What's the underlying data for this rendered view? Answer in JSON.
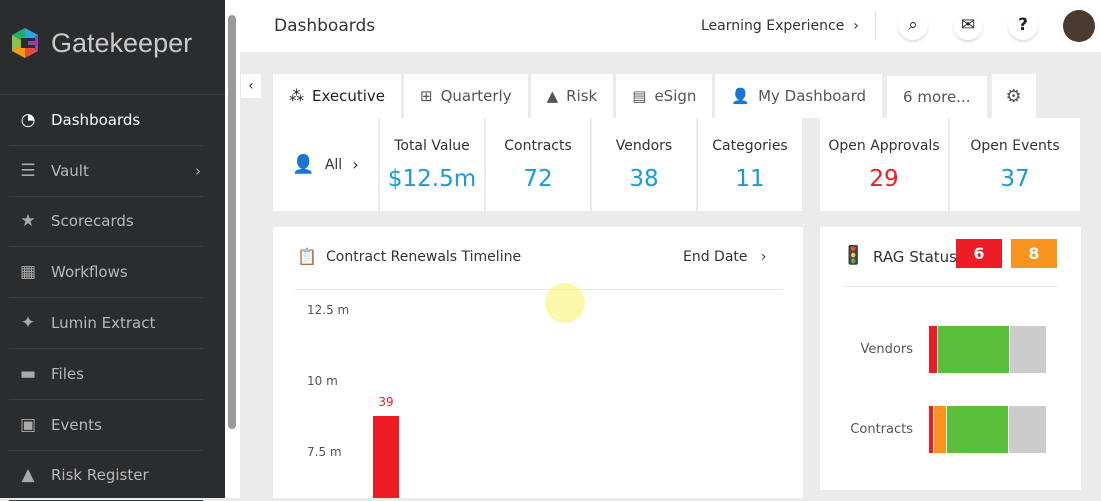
{
  "app": {
    "name": "Gatekeeper"
  },
  "sidebar": {
    "items": [
      {
        "label": "Dashboards",
        "icon": "dashboard-icon",
        "glyph": "◔",
        "active": true
      },
      {
        "label": "Vault",
        "icon": "vault-icon",
        "glyph": "☰",
        "chevron": "›"
      },
      {
        "label": "Scorecards",
        "icon": "scorecard-icon",
        "glyph": "★"
      },
      {
        "label": "Workflows",
        "icon": "workflow-icon",
        "glyph": "▦"
      },
      {
        "label": "Lumin Extract",
        "icon": "sparkle-icon",
        "glyph": "✦"
      },
      {
        "label": "Files",
        "icon": "folder-icon",
        "glyph": "▬"
      },
      {
        "label": "Events",
        "icon": "calendar-icon",
        "glyph": "▣"
      },
      {
        "label": "Risk Register",
        "icon": "warning-icon",
        "glyph": "▲"
      }
    ]
  },
  "header": {
    "title": "Dashboards",
    "link": "Learning Experience",
    "link_chevron": "›",
    "search": "⌕",
    "mail": "✉",
    "help": "?"
  },
  "tabs": [
    {
      "label": "Executive",
      "glyph": "⁂",
      "icon": "network-icon",
      "active": true
    },
    {
      "label": "Quarterly",
      "glyph": "⊞",
      "icon": "grid-icon"
    },
    {
      "label": "Risk",
      "glyph": "▲",
      "icon": "warning-icon"
    },
    {
      "label": "eSign",
      "glyph": "▤",
      "icon": "document-icon"
    },
    {
      "label": "My Dashboard",
      "glyph": "👤",
      "icon": "user-dashboard-icon"
    },
    {
      "label": "6 more...",
      "glyph": ""
    },
    {
      "label": "",
      "glyph": "⚙",
      "icon": "gear-icon"
    }
  ],
  "filter": {
    "label": "All",
    "chevron": "›"
  },
  "stats": [
    {
      "label": "Total Value",
      "value": "$12.5m"
    },
    {
      "label": "Contracts",
      "value": "72"
    },
    {
      "label": "Vendors",
      "value": "38"
    },
    {
      "label": "Categories",
      "value": "11"
    }
  ],
  "stats2": [
    {
      "label": "Open Approvals",
      "value": "29",
      "color": "#ee1c25"
    },
    {
      "label": "Open Events",
      "value": "37",
      "color": "#1a9ad6"
    }
  ],
  "timeline": {
    "title": "Contract Renewals Timeline",
    "sort": "End Date",
    "sort_chevron": "›"
  },
  "chart_data": [
    {
      "type": "bar",
      "title": "Contract Renewals Timeline",
      "y_ticks": [
        "12.5 m",
        "10 m",
        "7.5 m"
      ],
      "ylim_visible": [
        7.5,
        12.5
      ],
      "bars": [
        {
          "value_m": 8.8,
          "label": "39",
          "color": "#ee1c25"
        }
      ]
    },
    {
      "type": "stacked-bar",
      "title": "RAG Status",
      "categories": [
        "Vendors",
        "Contracts"
      ],
      "colors": {
        "red": "#ee1c25",
        "amber": "#f7941d",
        "green": "#5cbf3c",
        "none": "#cccccc"
      },
      "series": [
        {
          "name": "red",
          "values": [
            3,
            3
          ]
        },
        {
          "name": "amber",
          "values": [
            0,
            8
          ]
        },
        {
          "name": "green",
          "values": [
            23,
            38
          ]
        },
        {
          "name": "none",
          "values": [
            12,
            23
          ]
        }
      ]
    }
  ],
  "rag": {
    "title": "RAG Status",
    "red_count": "6",
    "amber_count": "8"
  }
}
